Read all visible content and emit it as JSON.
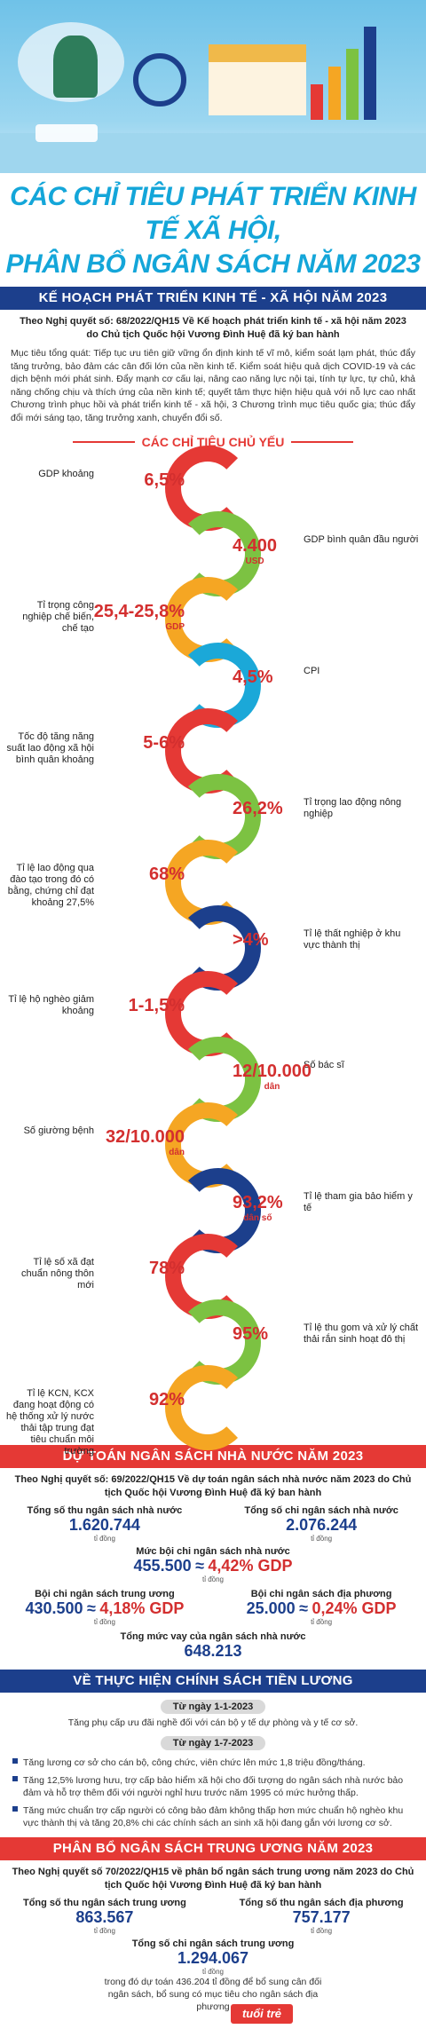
{
  "title": {
    "line1": "CÁC CHỈ TIÊU PHÁT TRIỂN KINH TẾ XÃ HỘI,",
    "line2": "PHÂN BỔ NGÂN SÁCH NĂM 2023"
  },
  "section1": {
    "band": "KẾ HOẠCH PHÁT TRIỂN KINH TẾ - XÃ HỘI NĂM 2023",
    "intro": "Theo Nghị quyết số: 68/2022/QH15 Về Kế hoạch phát triển kinh tế - xã hội năm 2023 do Chủ tịch Quốc hội Vương Đình Huệ đã ký ban hành",
    "para": "Mục tiêu tổng quát: Tiếp tục ưu tiên giữ vững ổn định kinh tế vĩ mô, kiểm soát lạm phát, thúc đẩy tăng trưởng, bảo đảm các cân đối lớn của nền kinh tế. Kiểm soát hiệu quả dịch COVID-19 và các dịch bệnh mới phát sinh. Đẩy mạnh cơ cấu lại, nâng cao năng lực nội tại, tính tự lực, tự chủ, khả năng chống chịu và thích ứng của nền kinh tế; quyết tâm thực hiện hiệu quả với nỗ lực cao nhất Chương trình phục hồi và phát triển kinh tế - xã hội, 3 Chương trình mục tiêu quốc gia; thúc đẩy đổi mới sáng tạo, tăng trưởng xanh, chuyển đổi số.",
    "subhead": "CÁC CHỈ TIÊU CHỦ YẾU"
  },
  "indicators": [
    {
      "side": "left",
      "label": "GDP khoảng",
      "value": "6,5%",
      "unit": "",
      "color": "#e53935"
    },
    {
      "side": "right",
      "label": "GDP bình quân đầu người",
      "value": "4.400",
      "unit": "USD",
      "color": "#7cc242"
    },
    {
      "side": "left",
      "label": "Tỉ trọng công nghiệp chế biến, chế tạo",
      "value": "25,4-25,8%",
      "unit": "GDP",
      "color": "#f5a623"
    },
    {
      "side": "right",
      "label": "CPI",
      "value": "4,5%",
      "unit": "",
      "color": "#1ba8d8"
    },
    {
      "side": "left",
      "label": "Tốc độ tăng năng suất lao động xã hội bình quân khoảng",
      "value": "5-6%",
      "unit": "",
      "color": "#e53935"
    },
    {
      "side": "right",
      "label": "Tỉ trọng lao động nông nghiệp",
      "value": "26,2%",
      "unit": "",
      "color": "#7cc242"
    },
    {
      "side": "left",
      "label": "Tỉ lệ lao động qua đào tạo trong đó có bằng, chứng chỉ đạt khoảng 27,5%",
      "value": "68%",
      "unit": "",
      "color": "#f5a623"
    },
    {
      "side": "right",
      "label": "Tỉ lệ thất nghiệp ở khu vực thành thị",
      "value": ">4%",
      "unit": "",
      "color": "#1c3f8c"
    },
    {
      "side": "left",
      "label": "Tỉ lệ hộ nghèo giảm khoảng",
      "value": "1-1,5%",
      "unit": "",
      "color": "#e53935"
    },
    {
      "side": "right",
      "label": "Số bác sĩ",
      "value": "12/10.000",
      "unit": "dân",
      "color": "#7cc242"
    },
    {
      "side": "left",
      "label": "Số giường bệnh",
      "value": "32/10.000",
      "unit": "dân",
      "color": "#f5a623"
    },
    {
      "side": "right",
      "label": "Tỉ lệ tham gia bảo hiểm y tế",
      "value": "93,2%",
      "unit": "dân số",
      "color": "#1c3f8c"
    },
    {
      "side": "left",
      "label": "Tỉ lệ số xã đạt chuẩn nông thôn mới",
      "value": "78%",
      "unit": "",
      "color": "#e53935"
    },
    {
      "side": "right",
      "label": "Tỉ lệ thu gom và xử lý chất thải rắn sinh hoạt đô thị",
      "value": "95%",
      "unit": "",
      "color": "#7cc242"
    },
    {
      "side": "left",
      "label": "Tỉ lệ KCN, KCX đang hoạt động có hệ thống xử lý nước thải tập trung đạt tiêu chuẩn môi trường",
      "value": "92%",
      "unit": "",
      "color": "#f5a623"
    }
  ],
  "section2": {
    "band": "DỰ TOÁN NGÂN SÁCH NHÀ NƯỚC NĂM 2023",
    "intro": "Theo Nghị quyết số: 69/2022/QH15 Về dự toán ngân sách nhà nước năm 2023 do Chủ tịch Quốc hội Vương Đình Huệ đã ký ban hành",
    "thu_label": "Tổng số thu ngân sách nhà nước",
    "thu_value": "1.620.744",
    "chi_label": "Tổng số chi ngân sách nhà nước",
    "chi_value": "2.076.244",
    "unit": "tỉ đồng",
    "ps_label": "Mức bội chi ngân sách nhà nước",
    "ps_value": "455.500",
    "ps_gdp": "4,42% GDP",
    "tw_label": "Bội chi ngân sách trung ương",
    "tw_value": "430.500",
    "tw_gdp": "4,18% GDP",
    "dp_label": "Bội chi ngân sách địa phương",
    "dp_value": "25.000",
    "dp_gdp": "0,24% GDP",
    "vay_label": "Tổng mức vay của ngân sách nhà nước",
    "vay_value": "648.213",
    "approx": "≈"
  },
  "section3": {
    "band": "VỀ THỰC HIỆN CHÍNH SÁCH TIỀN LƯƠNG",
    "d1": "Từ ngày 1-1-2023",
    "d1_text": "Tăng phụ cấp ưu đãi nghề đối với cán bộ y tế dự phòng và y tế cơ sở.",
    "d2": "Từ ngày 1-7-2023",
    "bullets": [
      "Tăng lương cơ sở cho cán bộ, công chức, viên chức lên mức 1,8 triệu đồng/tháng.",
      "Tăng 12,5% lương hưu, trợ cấp bảo hiểm xã hội cho đối tượng do ngân sách nhà nước bảo đảm và hỗ trợ thêm đối với người nghỉ hưu trước năm 1995 có mức hưởng thấp.",
      "Tăng mức chuẩn trợ cấp người có công bảo đảm không thấp hơn mức chuẩn hộ nghèo khu vực thành thị và tăng 20,8% chi các chính sách an sinh xã hội đang gắn với lương cơ sở."
    ]
  },
  "section4": {
    "band": "PHÂN BỔ NGÂN SÁCH TRUNG ƯƠNG NĂM 2023",
    "intro": "Theo Nghị quyết số 70/2022/QH15 về phân bổ ngân sách trung ương năm 2023 do Chủ tịch Quốc hội Vương Đình Huệ đã ký ban hành",
    "thu_label": "Tổng số thu ngân sách trung ương",
    "thu_value": "863.567",
    "dp_label": "Tổng số thu ngân sách địa phương",
    "dp_value": "757.177",
    "chi_label": "Tổng số chi ngân sách trung ương",
    "chi_value": "1.294.067",
    "unit": "tỉ đồng",
    "note": "trong đó dự toán 436.204 tỉ đồng để bổ sung cân đối ngân sách, bổ sung có mục tiêu cho ngân sách địa phương"
  },
  "logo": "tuổi trẻ"
}
